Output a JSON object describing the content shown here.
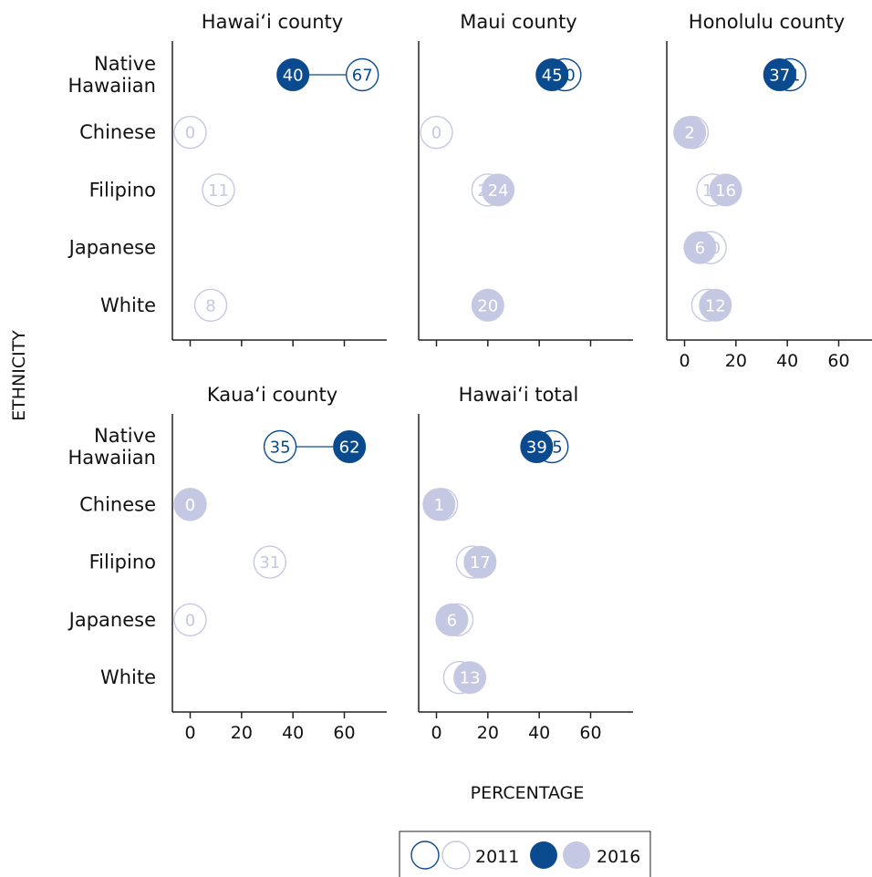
{
  "colors": {
    "nh_fill": "#0a4a8f",
    "nh_stroke": "#0a4a8f",
    "other_fill": "#c5c8e2",
    "other_stroke": "#c5c8e2",
    "text_light": "#c5c8e2",
    "axis": "#222222"
  },
  "chart_data": {
    "type": "scatter",
    "xlabel": "PERCENTAGE",
    "ylabel": "ETHNICITY",
    "xlim": [
      -8,
      77
    ],
    "xticks": [
      "0",
      "20",
      "40",
      "60"
    ],
    "xtick_values": [
      0,
      20,
      40,
      60
    ],
    "categories": [
      "Native Hawaiian",
      "Chinese",
      "Filipino",
      "Japanese",
      "White"
    ],
    "category_lines": [
      [
        "Native",
        "Hawaiian"
      ],
      [
        "Chinese"
      ],
      [
        "Filipino"
      ],
      [
        "Japanese"
      ],
      [
        "White"
      ]
    ],
    "legend": {
      "position": "bottom",
      "items": [
        "2011",
        "2016"
      ]
    },
    "panels": [
      {
        "title": "Hawaiʻi county",
        "points": [
          {
            "category": "Native Hawaiian",
            "y2011": 67,
            "y2016": 40
          },
          {
            "category": "Chinese",
            "y2011": 0,
            "y2016": null
          },
          {
            "category": "Filipino",
            "y2011": 11,
            "y2016": null
          },
          {
            "category": "Japanese",
            "y2011": null,
            "y2016": null
          },
          {
            "category": "White",
            "y2011": 8,
            "y2016": null
          }
        ]
      },
      {
        "title": "Maui county",
        "points": [
          {
            "category": "Native Hawaiian",
            "y2011": 50,
            "y2016": 45
          },
          {
            "category": "Chinese",
            "y2011": 0,
            "y2016": null
          },
          {
            "category": "Filipino",
            "y2011": 20,
            "y2016": 24
          },
          {
            "category": "Japanese",
            "y2011": null,
            "y2016": null
          },
          {
            "category": "White",
            "y2011": null,
            "y2016": 20
          }
        ]
      },
      {
        "title": "Honolulu county",
        "points": [
          {
            "category": "Native Hawaiian",
            "y2011": 41,
            "y2016": 37
          },
          {
            "category": "Chinese",
            "y2011": 3,
            "y2016": 2
          },
          {
            "category": "Filipino",
            "y2011": 11,
            "y2016": 16
          },
          {
            "category": "Japanese",
            "y2011": 10,
            "y2016": 6
          },
          {
            "category": "White",
            "y2011": 9,
            "y2016": 12
          }
        ]
      },
      {
        "title": "Kauaʻi county",
        "points": [
          {
            "category": "Native Hawaiian",
            "y2011": 35,
            "y2016": 62
          },
          {
            "category": "Chinese",
            "y2011": 0,
            "y2016": 0
          },
          {
            "category": "Filipino",
            "y2011": 31,
            "y2016": null
          },
          {
            "category": "Japanese",
            "y2011": 0,
            "y2016": null
          },
          {
            "category": "White",
            "y2011": null,
            "y2016": null
          }
        ]
      },
      {
        "title": "Hawaiʻi total",
        "points": [
          {
            "category": "Native Hawaiian",
            "y2011": 45,
            "y2016": 39
          },
          {
            "category": "Chinese",
            "y2011": 2,
            "y2016": 1
          },
          {
            "category": "Filipino",
            "y2011": 14,
            "y2016": 17
          },
          {
            "category": "Japanese",
            "y2011": 8,
            "y2016": 6
          },
          {
            "category": "White",
            "y2011": 9,
            "y2016": 13
          }
        ]
      }
    ]
  }
}
